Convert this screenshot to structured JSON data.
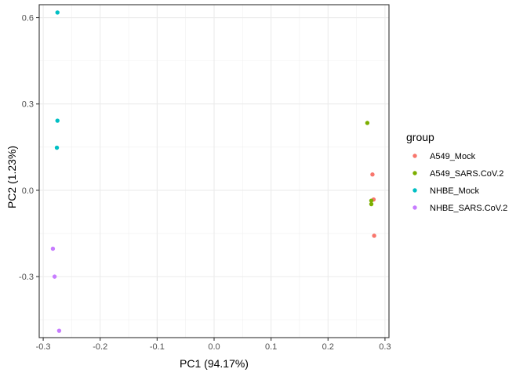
{
  "chart_data": {
    "type": "scatter",
    "xlabel": "PC1 (94.17%)",
    "ylabel": "PC2 (1.23%)",
    "xlim": [
      -0.307,
      0.307
    ],
    "ylim": [
      -0.512,
      0.645
    ],
    "x_ticks": [
      -0.3,
      -0.2,
      -0.1,
      0.0,
      0.1,
      0.2,
      0.3
    ],
    "x_tick_labels": [
      "-0.3",
      "-0.2",
      "-0.1",
      "0.0",
      "0.1",
      "0.2",
      "0.3"
    ],
    "y_ticks": [
      -0.3,
      0.0,
      0.3,
      0.6
    ],
    "y_tick_labels": [
      "-0.3",
      "0.0",
      "0.3",
      "0.6"
    ],
    "grid": true,
    "legend": {
      "title": "group",
      "position": "right"
    },
    "series": [
      {
        "name": "A549_Mock",
        "color": "#F8766D",
        "points": [
          [
            0.278,
            0.055
          ],
          [
            0.28,
            -0.032
          ],
          [
            0.281,
            -0.158
          ]
        ]
      },
      {
        "name": "A549_SARS.CoV.2",
        "color": "#7CAE00",
        "points": [
          [
            0.269,
            0.234
          ],
          [
            0.276,
            -0.036
          ],
          [
            0.276,
            -0.048
          ]
        ]
      },
      {
        "name": "NHBE_Mock",
        "color": "#00BFC4",
        "points": [
          [
            -0.275,
            0.618
          ],
          [
            -0.275,
            0.242
          ],
          [
            -0.276,
            0.148
          ]
        ]
      },
      {
        "name": "NHBE_SARS.CoV.2",
        "color": "#C77CFF",
        "points": [
          [
            -0.283,
            -0.203
          ],
          [
            -0.28,
            -0.3
          ],
          [
            -0.272,
            -0.488
          ]
        ]
      }
    ]
  }
}
